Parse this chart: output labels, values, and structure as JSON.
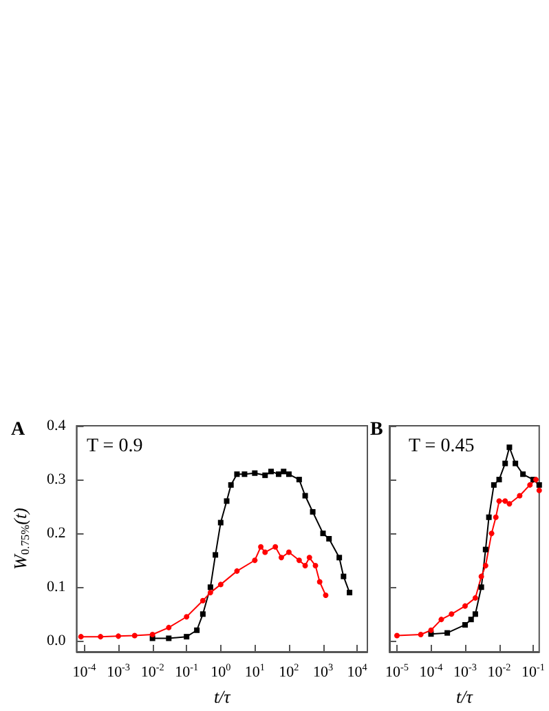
{
  "chart_data": [
    {
      "type": "line",
      "xlabel": "t/τ",
      "ylabel": "W$_{0.75%}$(t)",
      "annotations": [
        "A",
        "T = 0.9"
      ],
      "log": "x",
      "grid": false,
      "xlim": [
        6e-05,
        20000
      ],
      "xticks": [
        {
          "value": 0.0001,
          "label": "10$^{-4}$"
        },
        {
          "value": 0.001,
          "label": "10$^{-3}$"
        },
        {
          "value": 0.01,
          "label": "10$^{-2}$"
        },
        {
          "value": 0.1,
          "label": "10$^{-1}$"
        },
        {
          "value": 1,
          "label": "10$^{0}$"
        },
        {
          "value": 10,
          "label": "10$^{1}$"
        },
        {
          "value": 100,
          "label": "10$^{2}$"
        },
        {
          "value": 1000,
          "label": "10$^{3}$"
        },
        {
          "value": 10000,
          "label": "10$^{4}$"
        }
      ],
      "ylim": [
        -0.02,
        0.4
      ],
      "yticks": [
        {
          "value": 0,
          "label": "0.0"
        },
        0.1,
        0.2,
        0.3,
        0.4
      ],
      "series": [
        {
          "color": "#000000",
          "marker": "square",
          "x": [
            0.01,
            0.03,
            0.1,
            0.2,
            0.3,
            0.5,
            0.7,
            1,
            1.5,
            2,
            3,
            5,
            10,
            20,
            30,
            50,
            70,
            100,
            200,
            300,
            500,
            1000,
            1500,
            3000,
            4000,
            6000
          ],
          "values": [
            0.005,
            0.005,
            0.008,
            0.02,
            0.05,
            0.1,
            0.16,
            0.22,
            0.26,
            0.29,
            0.31,
            0.31,
            0.312,
            0.308,
            0.315,
            0.31,
            0.315,
            0.31,
            0.3,
            0.27,
            0.24,
            0.2,
            0.19,
            0.155,
            0.12,
            0.09
          ]
        },
        {
          "color": "#ff0000",
          "marker": "circle",
          "x": [
            8e-05,
            0.0003,
            0.001,
            0.003,
            0.01,
            0.03,
            0.1,
            0.3,
            0.5,
            1,
            3,
            10,
            15,
            20,
            40,
            60,
            100,
            200,
            300,
            400,
            600,
            800,
            1200
          ],
          "values": [
            0.008,
            0.008,
            0.009,
            0.01,
            0.012,
            0.025,
            0.045,
            0.075,
            0.09,
            0.105,
            0.13,
            0.15,
            0.175,
            0.165,
            0.175,
            0.155,
            0.165,
            0.15,
            0.14,
            0.155,
            0.14,
            0.11,
            0.085
          ]
        }
      ]
    },
    {
      "type": "line",
      "xlabel": "t/τ",
      "annotations": [
        "B",
        "T = 0.45"
      ],
      "log": "x",
      "grid": false,
      "tick_labels": "x",
      "xlim": [
        6e-06,
        0.15
      ],
      "xticks": [
        {
          "value": 1e-05,
          "label": "10$^{-5}$"
        },
        {
          "value": 0.0001,
          "label": "10$^{-4}$"
        },
        {
          "value": 0.001,
          "label": "10$^{-3}$"
        },
        {
          "value": 0.01,
          "label": "10$^{-2}$"
        },
        {
          "value": 0.1,
          "label": "10$^{-1}$"
        }
      ],
      "ylim": [
        -0.02,
        0.4
      ],
      "yticks": [
        0,
        0.1,
        0.2,
        0.3,
        0.4
      ],
      "series": [
        {
          "color": "#000000",
          "marker": "square",
          "x": [
            0.0001,
            0.0003,
            0.001,
            0.0015,
            0.002,
            0.003,
            0.004,
            0.005,
            0.007,
            0.01,
            0.015,
            0.02,
            0.03,
            0.05,
            0.1,
            0.15
          ],
          "values": [
            0.013,
            0.015,
            0.03,
            0.04,
            0.05,
            0.1,
            0.17,
            0.23,
            0.29,
            0.3,
            0.33,
            0.36,
            0.33,
            0.31,
            0.3,
            0.29
          ]
        },
        {
          "color": "#ff0000",
          "marker": "circle",
          "x": [
            1e-05,
            5e-05,
            0.0001,
            0.0002,
            0.0004,
            0.001,
            0.002,
            0.003,
            0.004,
            0.006,
            0.008,
            0.01,
            0.015,
            0.02,
            0.04,
            0.08,
            0.12,
            0.15
          ],
          "values": [
            0.01,
            0.012,
            0.02,
            0.04,
            0.05,
            0.065,
            0.08,
            0.12,
            0.14,
            0.2,
            0.23,
            0.26,
            0.26,
            0.255,
            0.27,
            0.29,
            0.3,
            0.28
          ]
        }
      ]
    }
  ]
}
